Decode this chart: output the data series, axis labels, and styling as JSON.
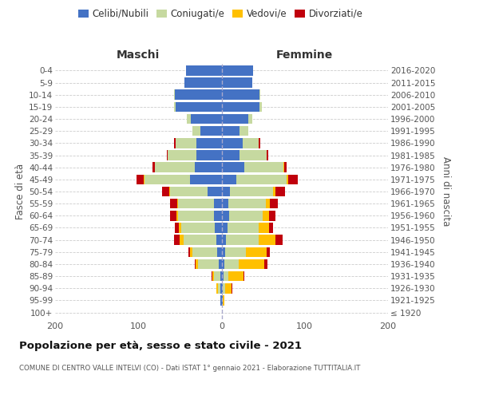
{
  "age_groups": [
    "100+",
    "95-99",
    "90-94",
    "85-89",
    "80-84",
    "75-79",
    "70-74",
    "65-69",
    "60-64",
    "55-59",
    "50-54",
    "45-49",
    "40-44",
    "35-39",
    "30-34",
    "25-29",
    "20-24",
    "15-19",
    "10-14",
    "5-9",
    "0-4"
  ],
  "birth_years": [
    "≤ 1920",
    "1921-1925",
    "1926-1930",
    "1931-1935",
    "1936-1940",
    "1941-1945",
    "1946-1950",
    "1951-1955",
    "1956-1960",
    "1961-1965",
    "1966-1970",
    "1971-1975",
    "1976-1980",
    "1981-1985",
    "1986-1990",
    "1991-1995",
    "1996-2000",
    "2001-2005",
    "2006-2010",
    "2011-2015",
    "2016-2020"
  ],
  "maschi": {
    "celibi": [
      0,
      1,
      1,
      1,
      3,
      5,
      6,
      8,
      9,
      9,
      17,
      38,
      32,
      30,
      30,
      25,
      37,
      55,
      56,
      45,
      43
    ],
    "coniugati": [
      0,
      0,
      3,
      8,
      25,
      30,
      40,
      40,
      43,
      43,
      45,
      55,
      48,
      35,
      25,
      10,
      5,
      2,
      1,
      0,
      0
    ],
    "vedovi": [
      0,
      0,
      2,
      2,
      3,
      3,
      4,
      3,
      2,
      1,
      1,
      1,
      0,
      0,
      0,
      0,
      0,
      0,
      0,
      0,
      0
    ],
    "divorziati": [
      0,
      0,
      0,
      1,
      1,
      2,
      7,
      5,
      8,
      9,
      8,
      8,
      3,
      1,
      2,
      0,
      0,
      0,
      0,
      0,
      0
    ]
  },
  "femmine": {
    "nubili": [
      0,
      1,
      1,
      2,
      3,
      4,
      5,
      7,
      9,
      8,
      10,
      18,
      27,
      22,
      25,
      22,
      32,
      46,
      46,
      37,
      38
    ],
    "coniugate": [
      0,
      0,
      3,
      6,
      18,
      25,
      40,
      38,
      40,
      45,
      52,
      60,
      47,
      32,
      20,
      10,
      5,
      2,
      1,
      0,
      0
    ],
    "vedove": [
      0,
      2,
      8,
      18,
      30,
      25,
      20,
      12,
      8,
      5,
      3,
      2,
      1,
      0,
      0,
      0,
      0,
      0,
      0,
      0,
      0
    ],
    "divorziate": [
      0,
      0,
      1,
      1,
      4,
      4,
      8,
      5,
      8,
      10,
      11,
      12,
      3,
      2,
      2,
      0,
      0,
      0,
      0,
      0,
      0
    ]
  },
  "colors": {
    "celibi": "#4472c4",
    "coniugati": "#c6d9a0",
    "vedovi": "#ffc000",
    "divorziati": "#c0000c"
  },
  "title1": "Popolazione per età, sesso e stato civile - 2021",
  "title2": "COMUNE DI CENTRO VALLE INTELVI (CO) - Dati ISTAT 1° gennaio 2021 - Elaborazione TUTTITALIA.IT",
  "label_maschi": "Maschi",
  "label_femmine": "Femmine",
  "ylabel_left": "Fasce di età",
  "ylabel_right": "Anni di nascita",
  "legend_labels": [
    "Celibi/Nubili",
    "Coniugati/e",
    "Vedovi/e",
    "Divorziati/e"
  ],
  "xlim": 200,
  "background_color": "#ffffff",
  "grid_color": "#cccccc"
}
